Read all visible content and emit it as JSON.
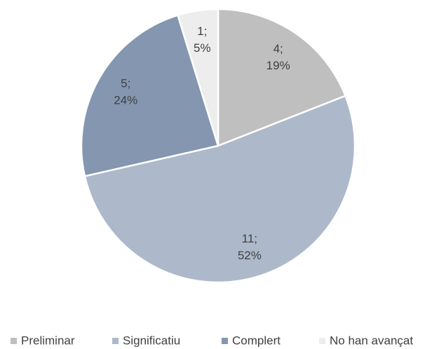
{
  "chart_data": {
    "type": "pie",
    "categories": [
      "Preliminar",
      "Significatiu",
      "Complert",
      "No han avançat"
    ],
    "values": [
      4,
      11,
      5,
      1
    ],
    "value_labels": [
      "4;",
      "11;",
      "5;",
      "1;"
    ],
    "percent_labels": [
      "19%",
      "52%",
      "24%",
      "5%"
    ],
    "colors": [
      "#bfbfbf",
      "#adb9ca",
      "#8496b0",
      "#ededed"
    ],
    "legend": "bottom"
  }
}
